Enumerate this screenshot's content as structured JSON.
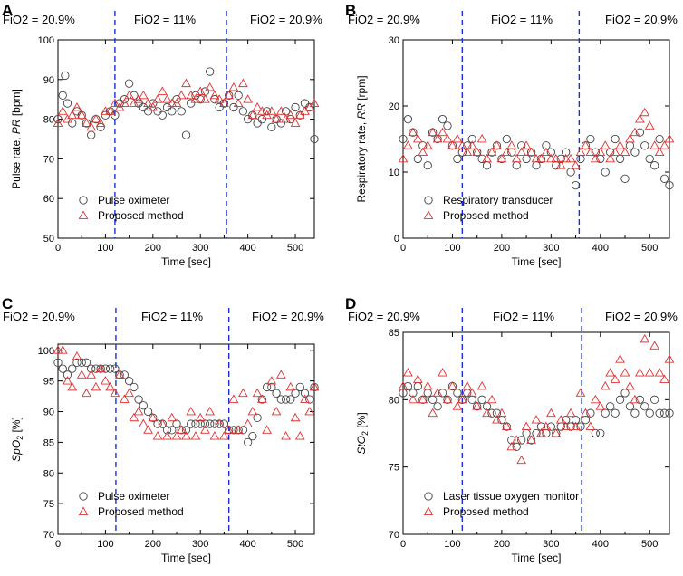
{
  "chart_data": [
    {
      "panel": "A",
      "type": "scatter",
      "phases": [
        "FiO2 = 20.9%",
        "FiO2 = 11%",
        "FiO2 = 20.9%"
      ],
      "phase_boundaries": [
        120,
        355
      ],
      "xlabel": "Time [sec]",
      "ylabel_plain": "Pulse rate, ",
      "ylabel_italic": "PR",
      "ylabel_unit": " [bpm]",
      "xlim": [
        0,
        540
      ],
      "ylim": [
        50,
        100
      ],
      "xticks": [
        0,
        100,
        200,
        300,
        400,
        500
      ],
      "yticks": [
        50,
        60,
        70,
        80,
        90,
        100
      ],
      "series": [
        {
          "name": "Pulse oximeter",
          "marker": "circle",
          "color": "#444444",
          "x": [
            0,
            10,
            15,
            20,
            30,
            40,
            50,
            60,
            70,
            80,
            90,
            100,
            110,
            120,
            130,
            140,
            150,
            160,
            170,
            180,
            190,
            200,
            210,
            220,
            230,
            240,
            250,
            260,
            270,
            280,
            290,
            300,
            310,
            320,
            330,
            340,
            350,
            360,
            370,
            380,
            390,
            400,
            410,
            420,
            430,
            440,
            450,
            460,
            470,
            480,
            490,
            500,
            510,
            520,
            530,
            540
          ],
          "y": [
            80,
            86,
            91,
            84,
            79,
            82,
            81,
            79,
            76,
            80,
            78,
            81,
            82,
            81,
            84,
            85,
            89,
            86,
            84,
            83,
            82,
            84,
            82,
            81,
            83,
            82,
            85,
            82,
            76,
            84,
            86,
            85,
            87,
            92,
            85,
            83,
            84,
            86,
            83,
            86,
            82,
            80,
            81,
            79,
            80,
            82,
            78,
            80,
            79,
            82,
            80,
            83,
            81,
            84,
            83,
            75
          ]
        },
        {
          "name": "Proposed method",
          "marker": "triangle",
          "color": "#e03030",
          "x": [
            0,
            10,
            20,
            30,
            40,
            50,
            60,
            70,
            80,
            90,
            100,
            110,
            120,
            130,
            140,
            150,
            160,
            170,
            180,
            190,
            200,
            210,
            220,
            230,
            240,
            250,
            260,
            270,
            280,
            290,
            300,
            310,
            320,
            330,
            340,
            350,
            360,
            370,
            380,
            390,
            400,
            410,
            420,
            430,
            440,
            450,
            460,
            470,
            480,
            490,
            500,
            510,
            520,
            530,
            540
          ],
          "y": [
            79,
            82,
            80,
            81,
            83,
            81,
            79,
            78,
            80,
            79,
            82,
            82,
            84,
            83,
            84,
            86,
            84,
            85,
            86,
            84,
            83,
            85,
            87,
            85,
            84,
            84,
            86,
            89,
            86,
            85,
            87,
            85,
            88,
            86,
            85,
            84,
            86,
            88,
            84,
            89,
            85,
            81,
            83,
            82,
            81,
            82,
            80,
            82,
            80,
            81,
            79,
            81,
            82,
            83,
            84
          ]
        }
      ],
      "legend_location": "lower-left"
    },
    {
      "panel": "B",
      "type": "scatter",
      "phases": [
        "FiO2 = 20.9%",
        "FiO2 = 11%",
        "FiO2 = 20.9%"
      ],
      "phase_boundaries": [
        120,
        357
      ],
      "xlabel": "Time [sec]",
      "ylabel_plain": "Respiratory rate, ",
      "ylabel_italic": "RR",
      "ylabel_unit": " [rpm]",
      "xlim": [
        0,
        540
      ],
      "ylim": [
        0,
        30
      ],
      "xticks": [
        0,
        100,
        200,
        300,
        400,
        500
      ],
      "yticks": [
        0,
        10,
        20,
        30
      ],
      "series": [
        {
          "name": "Respiratory transducer",
          "marker": "circle",
          "color": "#444444",
          "x": [
            0,
            10,
            20,
            30,
            40,
            50,
            60,
            70,
            80,
            90,
            100,
            110,
            120,
            130,
            140,
            150,
            160,
            170,
            180,
            190,
            200,
            210,
            220,
            230,
            240,
            250,
            260,
            270,
            280,
            290,
            300,
            310,
            320,
            330,
            340,
            350,
            360,
            370,
            380,
            390,
            400,
            410,
            420,
            430,
            440,
            450,
            460,
            470,
            480,
            490,
            500,
            510,
            520,
            530,
            540
          ],
          "y": [
            15,
            18,
            16,
            12,
            14,
            11,
            16,
            15,
            18,
            17,
            14,
            12,
            13,
            14,
            15,
            13,
            12,
            11,
            13,
            14,
            12,
            15,
            13,
            11,
            14,
            12,
            13,
            11,
            12,
            14,
            13,
            11,
            12,
            13,
            10,
            8,
            12,
            14,
            15,
            13,
            12,
            10,
            13,
            15,
            12,
            9,
            14,
            13,
            16,
            14,
            12,
            11,
            15,
            9,
            8
          ]
        },
        {
          "name": "Proposed method",
          "marker": "triangle",
          "color": "#e03030",
          "x": [
            0,
            10,
            20,
            30,
            40,
            50,
            60,
            70,
            80,
            90,
            100,
            110,
            120,
            130,
            140,
            150,
            160,
            170,
            180,
            190,
            200,
            210,
            220,
            230,
            240,
            250,
            260,
            270,
            280,
            290,
            300,
            310,
            320,
            330,
            340,
            350,
            360,
            370,
            380,
            390,
            400,
            410,
            420,
            430,
            440,
            450,
            460,
            470,
            480,
            490,
            500,
            510,
            520,
            530,
            540
          ],
          "y": [
            12,
            14,
            16,
            15,
            13,
            14,
            16,
            15,
            16,
            15,
            14,
            15,
            14,
            13,
            14,
            13,
            15,
            12,
            13,
            14,
            12,
            13,
            14,
            12,
            13,
            14,
            13,
            12,
            12,
            13,
            12,
            12,
            11,
            12,
            12,
            11,
            13,
            14,
            13,
            12,
            13,
            14,
            12,
            13,
            14,
            13,
            15,
            16,
            18,
            19,
            17,
            14,
            13,
            14,
            15
          ]
        }
      ],
      "legend_location": "lower-left"
    },
    {
      "panel": "C",
      "type": "scatter",
      "phases": [
        "FiO2 = 20.9%",
        "FiO2 = 11%",
        "FiO2 = 20.9%"
      ],
      "phase_boundaries": [
        122,
        360
      ],
      "xlabel": "Time [sec]",
      "ylabel_plain": "",
      "ylabel_italic": "SpO",
      "ylabel_sub": "2",
      "ylabel_unit": " [%]",
      "xlim": [
        0,
        540
      ],
      "ylim": [
        70,
        101
      ],
      "xticks": [
        0,
        100,
        200,
        300,
        400,
        500
      ],
      "yticks": [
        70,
        75,
        80,
        85,
        90,
        95,
        100
      ],
      "series": [
        {
          "name": "Pulse oximeter",
          "marker": "circle",
          "color": "#444444",
          "x": [
            0,
            10,
            20,
            30,
            40,
            50,
            60,
            70,
            80,
            90,
            100,
            110,
            120,
            130,
            140,
            150,
            160,
            170,
            180,
            190,
            200,
            210,
            220,
            230,
            240,
            250,
            260,
            270,
            280,
            290,
            300,
            310,
            320,
            330,
            340,
            350,
            360,
            370,
            380,
            390,
            400,
            410,
            420,
            430,
            440,
            450,
            460,
            470,
            480,
            490,
            500,
            510,
            520,
            530,
            540
          ],
          "y": [
            98,
            97,
            96,
            97,
            98,
            98,
            98,
            97,
            97,
            97,
            97,
            97,
            97,
            96,
            96,
            95,
            94,
            92,
            91,
            90,
            89,
            88,
            88,
            87,
            87,
            88,
            87,
            87,
            88,
            88,
            88,
            88,
            88,
            88,
            88,
            88,
            87,
            87,
            87,
            87,
            85,
            86,
            89,
            92,
            94,
            94,
            93,
            92,
            92,
            92,
            93,
            94,
            93,
            92,
            94
          ]
        },
        {
          "name": "Proposed method",
          "marker": "triangle",
          "color": "#e03030",
          "x": [
            0,
            10,
            20,
            30,
            40,
            50,
            60,
            70,
            80,
            90,
            100,
            110,
            120,
            130,
            140,
            150,
            160,
            170,
            180,
            190,
            200,
            210,
            220,
            230,
            240,
            250,
            260,
            270,
            280,
            290,
            300,
            310,
            320,
            330,
            340,
            350,
            360,
            370,
            380,
            390,
            400,
            410,
            420,
            430,
            440,
            450,
            460,
            470,
            480,
            490,
            500,
            510,
            520,
            530,
            540
          ],
          "y": [
            100,
            100,
            95,
            94,
            99,
            96,
            93,
            96,
            94,
            97,
            95,
            94,
            93,
            96,
            92,
            93,
            89,
            90,
            88,
            87,
            89,
            86,
            88,
            86,
            89,
            86,
            87,
            86,
            90,
            86,
            89,
            87,
            90,
            86,
            88,
            86,
            87,
            92,
            87,
            93,
            88,
            90,
            93,
            92,
            87,
            95,
            90,
            96,
            86,
            94,
            89,
            86,
            92,
            90,
            94
          ]
        }
      ],
      "legend_location": "lower-left"
    },
    {
      "panel": "D",
      "type": "scatter",
      "phases": [
        "FiO2 = 20.9%",
        "FiO2 = 11%",
        "FiO2 = 20.9%"
      ],
      "phase_boundaries": [
        120,
        362
      ],
      "xlabel": "Time [sec]",
      "ylabel_plain": "",
      "ylabel_italic": "StO",
      "ylabel_sub": "2",
      "ylabel_unit": " [%]",
      "xlim": [
        0,
        540
      ],
      "ylim": [
        70,
        85
      ],
      "xticks": [
        0,
        100,
        200,
        300,
        400,
        500
      ],
      "yticks": [
        70,
        75,
        80,
        85
      ],
      "series": [
        {
          "name": "Laser tissue oxygen monitor",
          "marker": "circle",
          "color": "#444444",
          "x": [
            0,
            10,
            20,
            30,
            40,
            50,
            60,
            70,
            80,
            90,
            100,
            110,
            120,
            130,
            140,
            150,
            160,
            170,
            180,
            190,
            200,
            210,
            220,
            230,
            240,
            250,
            260,
            270,
            280,
            290,
            300,
            310,
            320,
            330,
            340,
            350,
            360,
            370,
            380,
            390,
            400,
            410,
            420,
            430,
            440,
            450,
            460,
            470,
            480,
            490,
            500,
            510,
            520,
            530,
            540
          ],
          "y": [
            80.5,
            81,
            80.5,
            81,
            80,
            80.5,
            80,
            79.5,
            80.5,
            80,
            81,
            80.5,
            80,
            80.5,
            80,
            79.5,
            80,
            79.5,
            79,
            79,
            78.5,
            78,
            77,
            76.5,
            77,
            77.5,
            77,
            77.5,
            78,
            77.5,
            78,
            77.5,
            78,
            78.5,
            78,
            78.5,
            78,
            78.5,
            79,
            77.5,
            77.5,
            79,
            79.5,
            79,
            80,
            80.5,
            79.5,
            79,
            80,
            79.5,
            79,
            80,
            79,
            79,
            79
          ]
        },
        {
          "name": "Proposed method",
          "marker": "triangle",
          "color": "#e03030",
          "x": [
            0,
            10,
            20,
            30,
            40,
            50,
            60,
            70,
            80,
            90,
            100,
            110,
            120,
            130,
            140,
            150,
            160,
            170,
            180,
            190,
            200,
            210,
            220,
            230,
            240,
            250,
            260,
            270,
            280,
            290,
            300,
            310,
            320,
            330,
            340,
            350,
            360,
            370,
            380,
            390,
            400,
            410,
            420,
            430,
            440,
            450,
            460,
            470,
            480,
            490,
            500,
            510,
            520,
            530,
            540
          ],
          "y": [
            81,
            82,
            80,
            81.5,
            80,
            81,
            79,
            80.5,
            82,
            80,
            81,
            79.5,
            80,
            81,
            80.5,
            79.5,
            81,
            79,
            80,
            78.5,
            79,
            78,
            76.5,
            77,
            75.5,
            78,
            77,
            78.5,
            77.5,
            78,
            79,
            77.5,
            78.5,
            78,
            79,
            78,
            80.5,
            79,
            78,
            80,
            79.5,
            81,
            82,
            81.5,
            83,
            82,
            81,
            80,
            82,
            84.5,
            82,
            84,
            82,
            81.5,
            83
          ]
        }
      ],
      "legend_location": "lower-left"
    }
  ]
}
